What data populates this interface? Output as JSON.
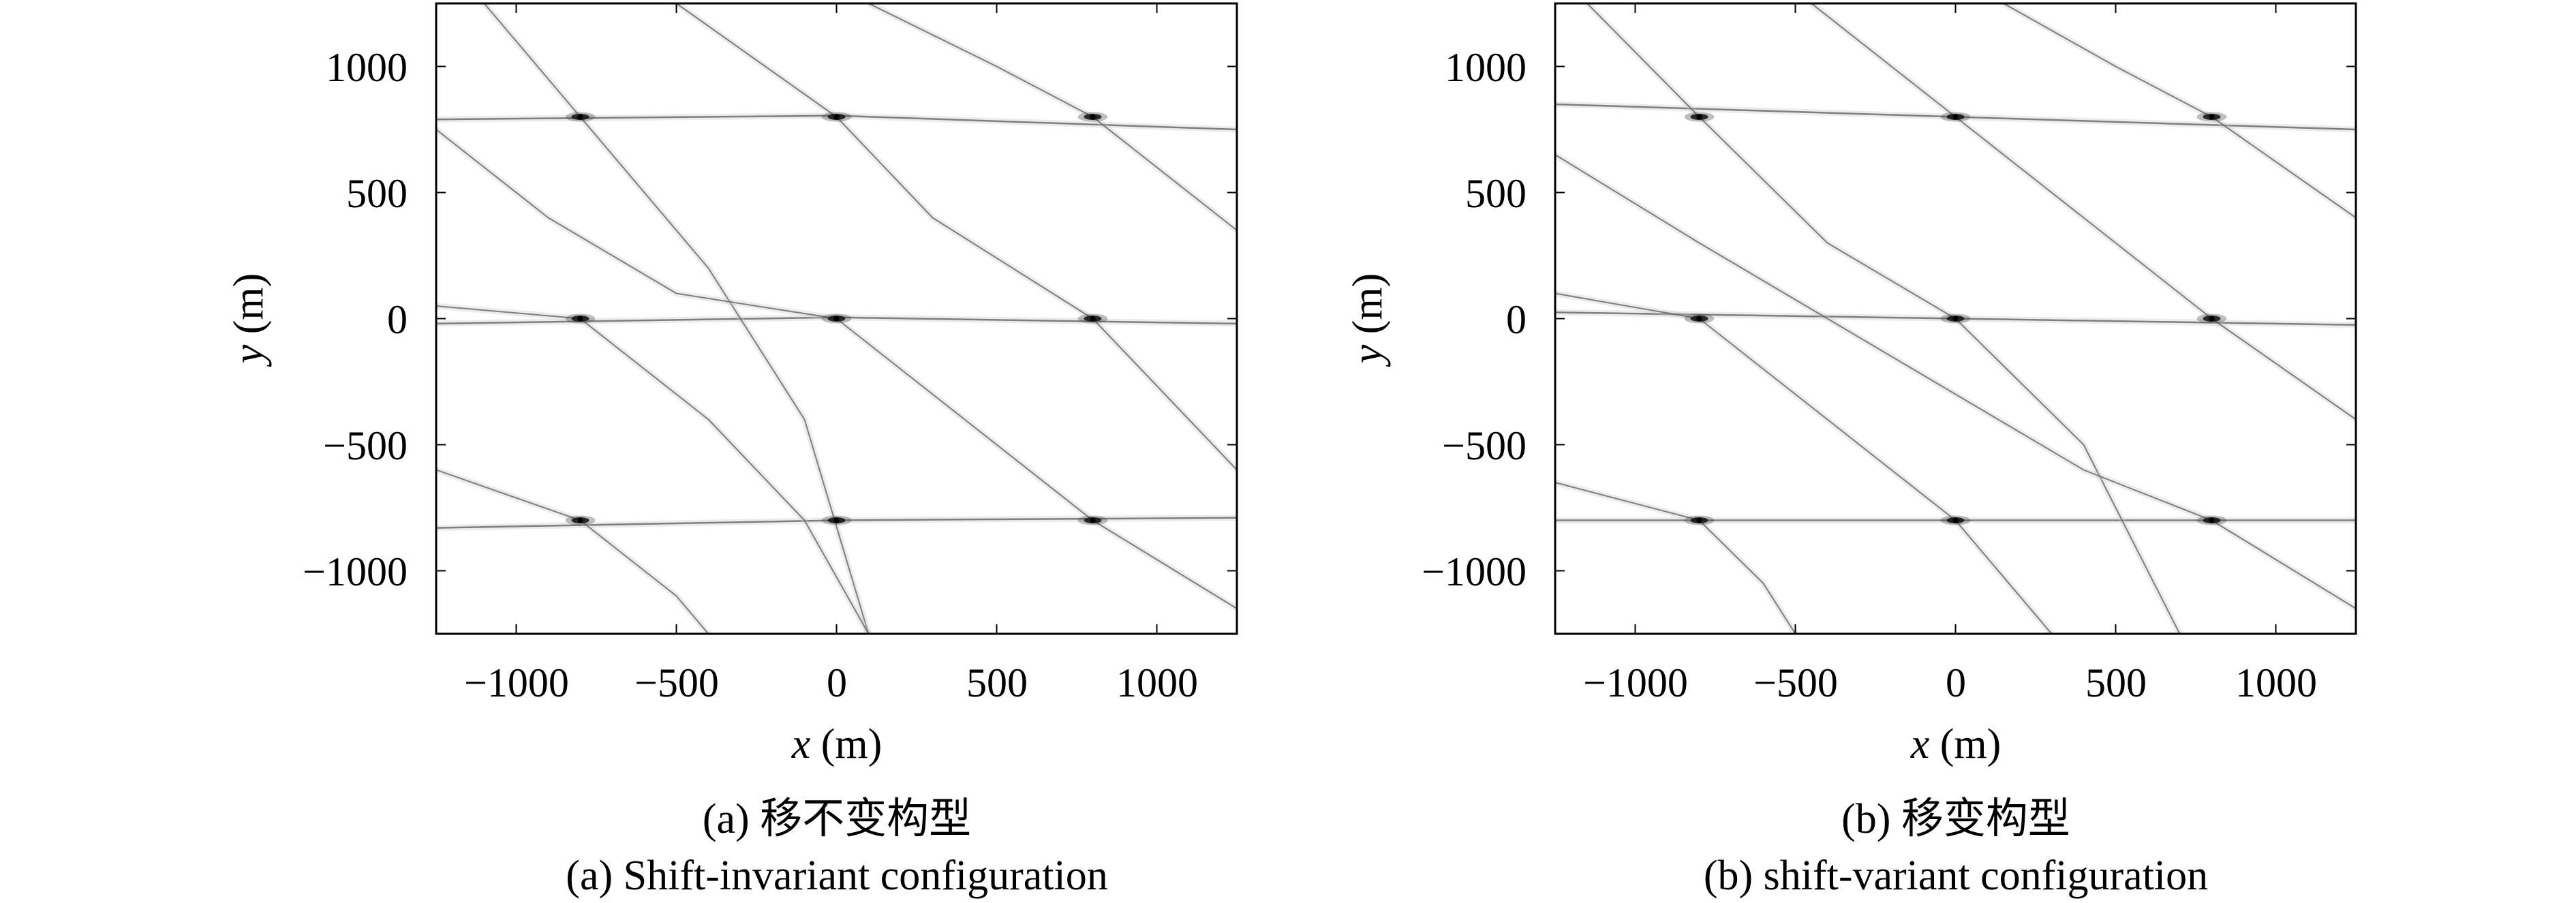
{
  "chart_data": [
    {
      "type": "scatter",
      "title": "",
      "caption_zh": "(a) 移不变构型",
      "caption_en": "(a) Shift-invariant configuration",
      "xlabel_var": "x",
      "xlabel_unit": "(m)",
      "ylabel_var": "y",
      "ylabel_unit": "(m)",
      "xlim": [
        -1250,
        1250
      ],
      "ylim": [
        -1250,
        1250
      ],
      "xticks": [
        -1000,
        -500,
        0,
        500,
        1000
      ],
      "xtick_labels": [
        "−1000",
        "−500",
        "0",
        "500",
        "1000"
      ],
      "yticks": [
        1000,
        500,
        0,
        -500,
        -1000
      ],
      "ytick_labels": [
        "1000",
        "500",
        "0",
        "−500",
        "−1000"
      ],
      "grid": false,
      "colormap": "grayscale",
      "points": [
        {
          "x": -800,
          "y": 800
        },
        {
          "x": 0,
          "y": 800
        },
        {
          "x": 800,
          "y": 800
        },
        {
          "x": -800,
          "y": 0
        },
        {
          "x": 0,
          "y": 0
        },
        {
          "x": 800,
          "y": 0
        },
        {
          "x": -800,
          "y": -800
        },
        {
          "x": 0,
          "y": -800
        },
        {
          "x": 800,
          "y": -800
        }
      ],
      "sidelobe_lines": [
        {
          "orientation": "near-horizontal",
          "points": [
            [
              -1250,
              790
            ],
            [
              0,
              805
            ],
            [
              1250,
              750
            ]
          ]
        },
        {
          "orientation": "near-horizontal",
          "points": [
            [
              -1250,
              -20
            ],
            [
              0,
              5
            ],
            [
              1250,
              -20
            ]
          ]
        },
        {
          "orientation": "near-horizontal",
          "points": [
            [
              -1250,
              -830
            ],
            [
              0,
              -800
            ],
            [
              1250,
              -790
            ]
          ]
        },
        {
          "orientation": "diagonal",
          "points": [
            [
              -1100,
              1250
            ],
            [
              -800,
              800
            ],
            [
              -400,
              200
            ],
            [
              -300,
              0
            ],
            [
              -100,
              -400
            ],
            [
              100,
              -1250
            ]
          ]
        },
        {
          "orientation": "diagonal",
          "points": [
            [
              -500,
              1250
            ],
            [
              0,
              800
            ],
            [
              300,
              400
            ],
            [
              800,
              0
            ],
            [
              1100,
              -400
            ],
            [
              1250,
              -600
            ]
          ]
        },
        {
          "orientation": "diagonal",
          "points": [
            [
              -1250,
              50
            ],
            [
              -800,
              0
            ],
            [
              -400,
              -400
            ],
            [
              -100,
              -800
            ],
            [
              100,
              -1250
            ]
          ]
        },
        {
          "orientation": "diagonal",
          "points": [
            [
              100,
              1250
            ],
            [
              500,
              1000
            ],
            [
              800,
              800
            ],
            [
              1250,
              350
            ]
          ]
        },
        {
          "orientation": "diagonal",
          "points": [
            [
              -1250,
              750
            ],
            [
              -900,
              400
            ],
            [
              -500,
              100
            ],
            [
              0,
              0
            ],
            [
              400,
              -400
            ],
            [
              800,
              -800
            ],
            [
              1250,
              -1150
            ]
          ]
        },
        {
          "orientation": "diagonal",
          "points": [
            [
              -1250,
              -600
            ],
            [
              -800,
              -800
            ],
            [
              -500,
              -1100
            ],
            [
              -400,
              -1250
            ]
          ]
        }
      ]
    },
    {
      "type": "scatter",
      "title": "",
      "caption_zh": "(b) 移变构型",
      "caption_en": "(b) shift-variant configuration",
      "xlabel_var": "x",
      "xlabel_unit": "(m)",
      "ylabel_var": "y",
      "ylabel_unit": "(m)",
      "xlim": [
        -1250,
        1250
      ],
      "ylim": [
        -1250,
        1250
      ],
      "xticks": [
        -1000,
        -500,
        0,
        500,
        1000
      ],
      "xtick_labels": [
        "−1000",
        "−500",
        "0",
        "500",
        "1000"
      ],
      "yticks": [
        1000,
        500,
        0,
        -500,
        -1000
      ],
      "ytick_labels": [
        "1000",
        "500",
        "0",
        "−500",
        "−1000"
      ],
      "grid": false,
      "colormap": "grayscale",
      "points": [
        {
          "x": -800,
          "y": 800
        },
        {
          "x": 0,
          "y": 800
        },
        {
          "x": 800,
          "y": 800
        },
        {
          "x": -800,
          "y": 0
        },
        {
          "x": 0,
          "y": 0
        },
        {
          "x": 800,
          "y": 0
        },
        {
          "x": -800,
          "y": -800
        },
        {
          "x": 0,
          "y": -800
        },
        {
          "x": 800,
          "y": -800
        }
      ],
      "sidelobe_lines": [
        {
          "orientation": "near-horizontal",
          "points": [
            [
              -1250,
              850
            ],
            [
              0,
              800
            ],
            [
              1250,
              750
            ]
          ]
        },
        {
          "orientation": "near-horizontal",
          "points": [
            [
              -1250,
              25
            ],
            [
              0,
              0
            ],
            [
              1250,
              -25
            ]
          ]
        },
        {
          "orientation": "near-horizontal",
          "points": [
            [
              -1250,
              -800
            ],
            [
              0,
              -800
            ],
            [
              1250,
              -800
            ]
          ]
        },
        {
          "orientation": "diagonal",
          "points": [
            [
              -1150,
              1250
            ],
            [
              -800,
              800
            ],
            [
              -400,
              300
            ],
            [
              0,
              0
            ],
            [
              400,
              -500
            ],
            [
              700,
              -1250
            ]
          ]
        },
        {
          "orientation": "diagonal",
          "points": [
            [
              -450,
              1250
            ],
            [
              0,
              800
            ],
            [
              400,
              400
            ],
            [
              800,
              0
            ],
            [
              1250,
              -400
            ]
          ]
        },
        {
          "orientation": "diagonal",
          "points": [
            [
              -1250,
              100
            ],
            [
              -800,
              0
            ],
            [
              -400,
              -400
            ],
            [
              0,
              -800
            ],
            [
              300,
              -1250
            ]
          ]
        },
        {
          "orientation": "diagonal",
          "points": [
            [
              150,
              1250
            ],
            [
              500,
              1000
            ],
            [
              800,
              800
            ],
            [
              1250,
              400
            ]
          ]
        },
        {
          "orientation": "diagonal",
          "points": [
            [
              -1250,
              650
            ],
            [
              -800,
              300
            ],
            [
              -400,
              0
            ],
            [
              0,
              -300
            ],
            [
              400,
              -600
            ],
            [
              800,
              -800
            ],
            [
              1250,
              -1150
            ]
          ]
        },
        {
          "orientation": "diagonal",
          "points": [
            [
              -1250,
              -650
            ],
            [
              -800,
              -800
            ],
            [
              -600,
              -1050
            ],
            [
              -500,
              -1250
            ]
          ]
        }
      ]
    }
  ]
}
